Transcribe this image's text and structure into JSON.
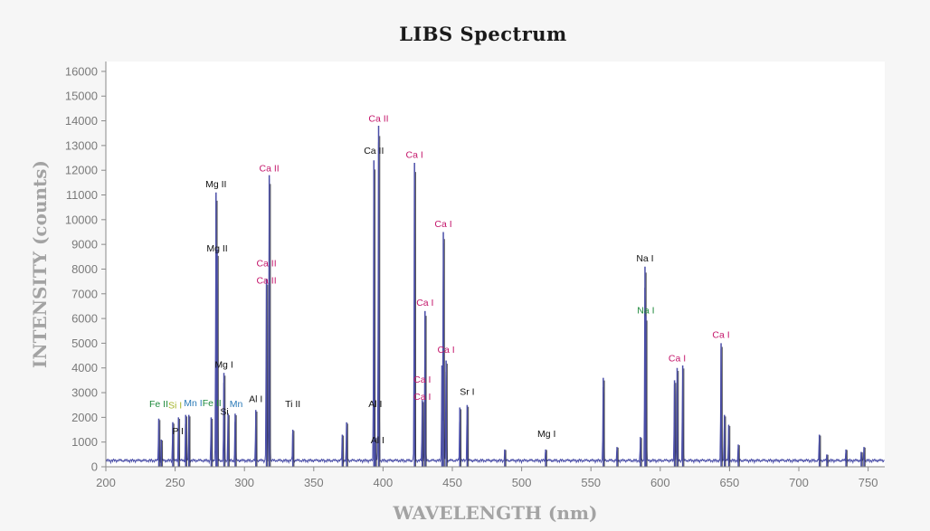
{
  "chart_data": {
    "type": "line",
    "title": "LIBS Spectrum",
    "xlabel": "WAVELENGTH (nm)",
    "ylabel": "INTENSITY (counts)",
    "xlim": [
      200,
      762
    ],
    "ylim": [
      0,
      16400
    ],
    "xticks": [
      200,
      250,
      300,
      350,
      400,
      450,
      500,
      550,
      600,
      650,
      700,
      750
    ],
    "yticks": [
      0,
      1000,
      2000,
      3000,
      4000,
      5000,
      6000,
      7000,
      8000,
      9000,
      10000,
      11000,
      12000,
      13000,
      14000,
      15000,
      16000
    ],
    "colors": {
      "blue_series": "#4b4fa8",
      "black_series": "#2a2a2a",
      "Ca": "#c4166b",
      "Mg": "#111111",
      "Na_green": "#1e8a3c",
      "Fe": "#1e8a3c",
      "Si": "#a5b52a",
      "Mn": "#2a7ab8"
    },
    "series": [
      {
        "peaks": [
          {
            "x": 238.2,
            "y": 1950
          },
          {
            "x": 240.0,
            "y": 1100
          },
          {
            "x": 248.3,
            "y": 1800
          },
          {
            "x": 252.4,
            "y": 2000
          },
          {
            "x": 257.6,
            "y": 2100
          },
          {
            "x": 259.9,
            "y": 2100
          },
          {
            "x": 276.0,
            "y": 2000
          },
          {
            "x": 279.5,
            "y": 11100
          },
          {
            "x": 280.3,
            "y": 8800
          },
          {
            "x": 285.2,
            "y": 3800
          },
          {
            "x": 288.2,
            "y": 2150
          },
          {
            "x": 293.3,
            "y": 2150
          },
          {
            "x": 308.2,
            "y": 2300
          },
          {
            "x": 315.9,
            "y": 7600
          },
          {
            "x": 317.9,
            "y": 11800
          },
          {
            "x": 334.9,
            "y": 1500
          },
          {
            "x": 370.6,
            "y": 1300
          },
          {
            "x": 373.7,
            "y": 1800
          },
          {
            "x": 393.4,
            "y": 12400
          },
          {
            "x": 394.4,
            "y": 1200
          },
          {
            "x": 396.8,
            "y": 13800
          },
          {
            "x": 422.7,
            "y": 12300
          },
          {
            "x": 428.3,
            "y": 2700
          },
          {
            "x": 430.3,
            "y": 6300
          },
          {
            "x": 442.5,
            "y": 4100
          },
          {
            "x": 443.5,
            "y": 9500
          },
          {
            "x": 445.5,
            "y": 4300
          },
          {
            "x": 455.4,
            "y": 2400
          },
          {
            "x": 460.7,
            "y": 2500
          },
          {
            "x": 487.8,
            "y": 700
          },
          {
            "x": 517.3,
            "y": 700
          },
          {
            "x": 558.9,
            "y": 3600
          },
          {
            "x": 568.8,
            "y": 800
          },
          {
            "x": 585.7,
            "y": 1200
          },
          {
            "x": 589.0,
            "y": 8100
          },
          {
            "x": 589.6,
            "y": 6100
          },
          {
            "x": 610.3,
            "y": 3500
          },
          {
            "x": 612.2,
            "y": 4000
          },
          {
            "x": 616.2,
            "y": 4100
          },
          {
            "x": 643.9,
            "y": 5000
          },
          {
            "x": 646.3,
            "y": 2100
          },
          {
            "x": 649.4,
            "y": 1700
          },
          {
            "x": 656.3,
            "y": 900
          },
          {
            "x": 714.8,
            "y": 1300
          },
          {
            "x": 720.2,
            "y": 500
          },
          {
            "x": 734.0,
            "y": 700
          },
          {
            "x": 745.0,
            "y": 600
          },
          {
            "x": 747.0,
            "y": 800
          }
        ]
      }
    ],
    "annotations": [
      {
        "text": "Ca II",
        "x": 396.8,
        "y": 13850,
        "color": "#c4166b"
      },
      {
        "text": "Ca II",
        "x": 393.4,
        "y": 12550,
        "color": "#111111"
      },
      {
        "text": "Ca I",
        "x": 422.7,
        "y": 12400,
        "color": "#c4166b"
      },
      {
        "text": "Ca II",
        "x": 317.9,
        "y": 11850,
        "color": "#c4166b"
      },
      {
        "text": "Mg II",
        "x": 279.5,
        "y": 11200,
        "color": "#111111"
      },
      {
        "text": "Ca I",
        "x": 443.5,
        "y": 9600,
        "color": "#c4166b"
      },
      {
        "text": "Mg II",
        "x": 280.3,
        "y": 8600,
        "color": "#111111"
      },
      {
        "text": "Na I",
        "x": 589.0,
        "y": 8200,
        "color": "#111111"
      },
      {
        "text": "Ca II",
        "x": 315.9,
        "y": 8000,
        "color": "#c4166b"
      },
      {
        "text": "Ca II",
        "x": 315.9,
        "y": 7300,
        "color": "#c4166b"
      },
      {
        "text": "Ca I",
        "x": 430.3,
        "y": 6400,
        "color": "#c4166b"
      },
      {
        "text": "Na I",
        "x": 589.6,
        "y": 6100,
        "color": "#1e8a3c"
      },
      {
        "text": "Ca I",
        "x": 643.9,
        "y": 5100,
        "color": "#c4166b"
      },
      {
        "text": "Ca I",
        "x": 445.5,
        "y": 4500,
        "color": "#c4166b"
      },
      {
        "text": "Ca I",
        "x": 612.2,
        "y": 4150,
        "color": "#c4166b"
      },
      {
        "text": "Mg I",
        "x": 285.2,
        "y": 3900,
        "color": "#111111"
      },
      {
        "text": "Ca I",
        "x": 428.3,
        "y": 3300,
        "color": "#c4166b"
      },
      {
        "text": "Sr I",
        "x": 460.7,
        "y": 2800,
        "color": "#111111"
      },
      {
        "text": "Ca I",
        "x": 428.3,
        "y": 2600,
        "color": "#c4166b"
      },
      {
        "text": "Al I",
        "x": 308.2,
        "y": 2500,
        "color": "#111111"
      },
      {
        "text": "Fe II",
        "x": 238.2,
        "y": 2300,
        "color": "#1e8a3c"
      },
      {
        "text": "Si I",
        "x": 250.0,
        "y": 2250,
        "color": "#a5b52a"
      },
      {
        "text": "Mn I",
        "x": 263.0,
        "y": 2350,
        "color": "#2a7ab8"
      },
      {
        "text": "Fe II",
        "x": 276.5,
        "y": 2350,
        "color": "#1e8a3c"
      },
      {
        "text": "Mn",
        "x": 294.0,
        "y": 2300,
        "color": "#2a7ab8"
      },
      {
        "text": "Ti II",
        "x": 334.9,
        "y": 2300,
        "color": "#111111"
      },
      {
        "text": "Al I",
        "x": 394.4,
        "y": 2300,
        "color": "#111111"
      },
      {
        "text": "Si",
        "x": 285.5,
        "y": 2000,
        "color": "#111111"
      },
      {
        "text": "P I",
        "x": 252.0,
        "y": 1200,
        "color": "#111111"
      },
      {
        "text": "Mg I",
        "x": 518.0,
        "y": 1100,
        "color": "#111111"
      },
      {
        "text": "Al I",
        "x": 396.0,
        "y": 850,
        "color": "#111111"
      }
    ]
  }
}
